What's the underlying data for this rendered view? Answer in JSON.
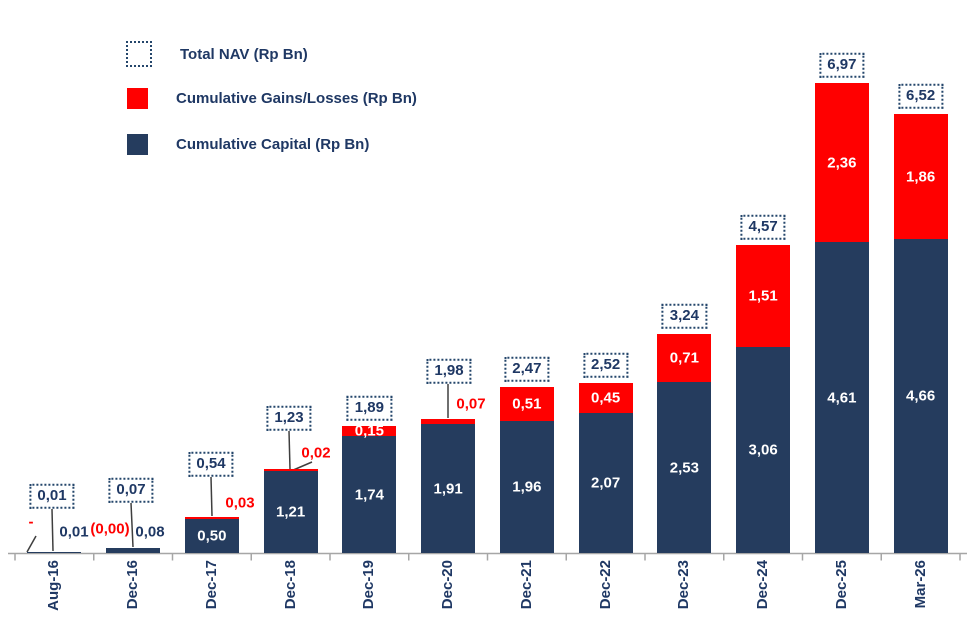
{
  "legend": {
    "total_nav": "Total NAV (Rp Bn)",
    "gains": "Cumulative Gains/Losses (Rp Bn)",
    "capital": "Cumulative Capital (Rp Bn)"
  },
  "colors": {
    "capital": "#253c5e",
    "gains": "#ff0000",
    "navy_text": "#1f3864",
    "red_text": "#ff0000",
    "axis": "#a6a6a6",
    "callout_line": "#3f3f3f",
    "inside_label_text": "#ffffff"
  },
  "chart_data": {
    "type": "bar",
    "stacked": true,
    "title": "",
    "xlabel": "",
    "ylabel": "",
    "categories": [
      "Aug-16",
      "Dec-16",
      "Dec-17",
      "Dec-18",
      "Dec-19",
      "Dec-20",
      "Dec-21",
      "Dec-22",
      "Dec-23",
      "Dec-24",
      "Dec-25",
      "Mar-26"
    ],
    "series": [
      {
        "name": "Cumulative Capital (Rp Bn)",
        "color": "#253c5e",
        "values": [
          0.01,
          0.08,
          0.5,
          1.21,
          1.74,
          1.91,
          1.96,
          2.07,
          2.53,
          3.06,
          4.61,
          4.66
        ],
        "labels": [
          "0,01",
          "0,08",
          "0,50",
          "1,21",
          "1,74",
          "1,91",
          "1,96",
          "2,07",
          "2,53",
          "3,06",
          "4,61",
          "4,66"
        ]
      },
      {
        "name": "Cumulative Gains/Losses (Rp Bn)",
        "color": "#ff0000",
        "values": [
          0.0,
          -0.0,
          0.03,
          0.02,
          0.15,
          0.07,
          0.51,
          0.45,
          0.71,
          1.51,
          2.36,
          1.86
        ],
        "labels": [
          "-",
          "(0,00)",
          "0,03",
          "0,02",
          "0,15",
          "0,07",
          "0,51",
          "0,45",
          "0,71",
          "1,51",
          "2,36",
          "1,86"
        ]
      }
    ],
    "totals": {
      "name": "Total NAV (Rp Bn)",
      "values": [
        0.01,
        0.07,
        0.54,
        1.23,
        1.89,
        1.98,
        2.47,
        2.52,
        3.24,
        4.57,
        6.97,
        6.52
      ],
      "labels": [
        "0,01",
        "0,07",
        "0,54",
        "1,23",
        "1,89",
        "1,98",
        "2,47",
        "2,52",
        "3,24",
        "4,57",
        "6,97",
        "6,52"
      ]
    },
    "ylim": [
      0,
      7.5
    ],
    "grid": false,
    "legend_position": "top-left",
    "decimal_separator": ",",
    "x_axis_label_rotation": -90
  }
}
